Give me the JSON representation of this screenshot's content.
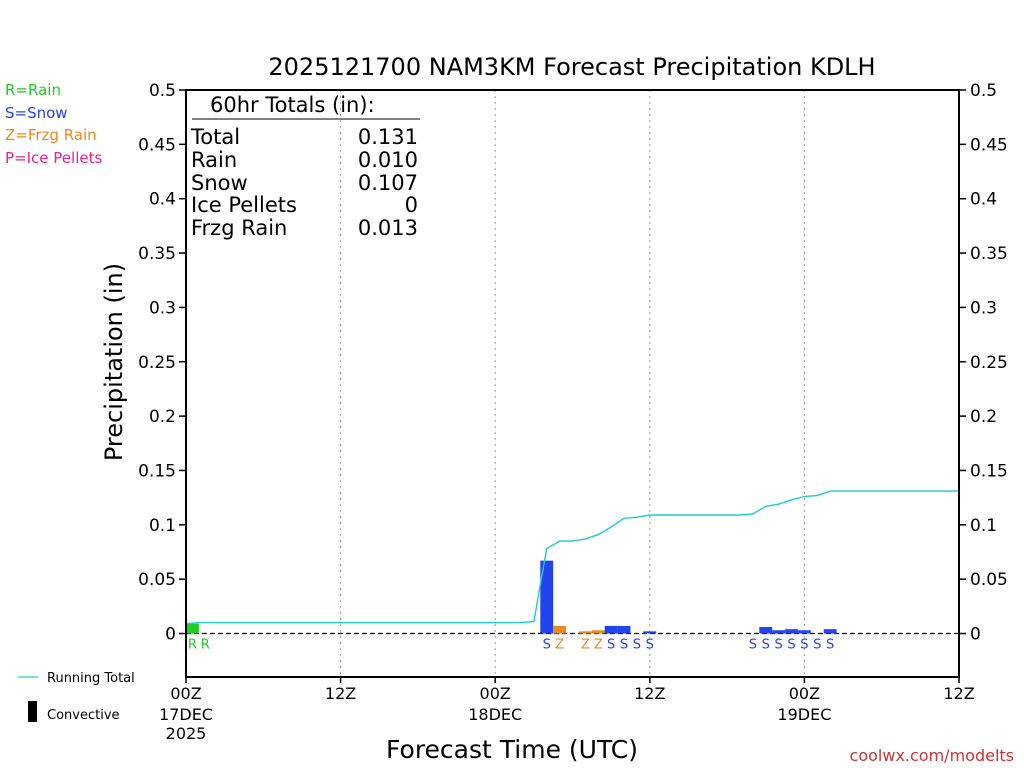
{
  "chart_data": {
    "type": "bar",
    "title": "2025121700 NAM3KM Forecast Precipitation KDLH",
    "xlabel": "Forecast Time (UTC)",
    "ylabel": "Precipitation (in)",
    "ylim": [
      -0.04,
      0.5
    ],
    "xlim_hours": [
      0,
      60
    ],
    "y_ticks": [
      0,
      0.05,
      0.1,
      0.15,
      0.2,
      0.25,
      0.3,
      0.35,
      0.4,
      0.45,
      0.5
    ],
    "y_tick_labels": [
      "0",
      "0.05",
      "0.1",
      "0.15",
      "0.2",
      "0.25",
      "0.3",
      "0.35",
      "0.4",
      "0.45",
      "0.5"
    ],
    "x_ticks": [
      {
        "hour": 0,
        "label": "00Z",
        "date": "17DEC",
        "year": "2025"
      },
      {
        "hour": 12,
        "label": "12Z",
        "date": "",
        "year": ""
      },
      {
        "hour": 24,
        "label": "00Z",
        "date": "18DEC",
        "year": ""
      },
      {
        "hour": 36,
        "label": "12Z",
        "date": "",
        "year": ""
      },
      {
        "hour": 48,
        "label": "00Z",
        "date": "19DEC",
        "year": ""
      },
      {
        "hour": 60,
        "label": "12Z",
        "date": "",
        "year": ""
      }
    ],
    "bars": [
      {
        "start": 0,
        "end": 1,
        "value": 0.009,
        "type": "R"
      },
      {
        "start": 27.5,
        "end": 28.5,
        "value": 0.067,
        "type": "S"
      },
      {
        "start": 28.5,
        "end": 29.5,
        "value": 0.007,
        "type": "Z"
      },
      {
        "start": 30.5,
        "end": 31.5,
        "value": 0.002,
        "type": "Z"
      },
      {
        "start": 31.5,
        "end": 32.5,
        "value": 0.003,
        "type": "Z"
      },
      {
        "start": 32.5,
        "end": 33.5,
        "value": 0.007,
        "type": "S"
      },
      {
        "start": 33.5,
        "end": 34.5,
        "value": 0.007,
        "type": "S"
      },
      {
        "start": 35.5,
        "end": 36.5,
        "value": 0.002,
        "type": "S"
      },
      {
        "start": 44.5,
        "end": 45.5,
        "value": 0.006,
        "type": "S"
      },
      {
        "start": 45.5,
        "end": 46.5,
        "value": 0.003,
        "type": "S"
      },
      {
        "start": 46.5,
        "end": 47.5,
        "value": 0.004,
        "type": "S"
      },
      {
        "start": 47.5,
        "end": 48.5,
        "value": 0.003,
        "type": "S"
      },
      {
        "start": 49.5,
        "end": 50.5,
        "value": 0.004,
        "type": "S"
      }
    ],
    "type_marks": [
      {
        "hour": 0.5,
        "type": "R",
        "text": "R"
      },
      {
        "hour": 1.5,
        "type": "R",
        "text": "R"
      },
      {
        "hour": 28,
        "type": "S",
        "text": "S"
      },
      {
        "hour": 29,
        "type": "Z",
        "text": "Z"
      },
      {
        "hour": 31,
        "type": "Z",
        "text": "Z"
      },
      {
        "hour": 32,
        "type": "Z",
        "text": "Z"
      },
      {
        "hour": 33,
        "type": "S",
        "text": "S"
      },
      {
        "hour": 34,
        "type": "S",
        "text": "S"
      },
      {
        "hour": 35,
        "type": "S",
        "text": "S"
      },
      {
        "hour": 36,
        "type": "S",
        "text": "S"
      },
      {
        "hour": 44,
        "type": "S",
        "text": "S"
      },
      {
        "hour": 45,
        "type": "S",
        "text": "S"
      },
      {
        "hour": 46,
        "type": "S",
        "text": "S"
      },
      {
        "hour": 47,
        "type": "S",
        "text": "S"
      },
      {
        "hour": 48,
        "type": "S",
        "text": "S"
      },
      {
        "hour": 49,
        "type": "S",
        "text": "S"
      },
      {
        "hour": 50,
        "type": "S",
        "text": "S"
      }
    ],
    "running_total": {
      "name": "Running Total",
      "x": [
        0,
        1,
        2,
        26,
        27,
        27.5,
        28,
        29,
        30,
        31,
        32,
        33,
        34,
        35,
        36,
        37,
        38,
        39,
        40,
        41,
        42,
        43,
        44,
        45,
        46,
        47,
        48,
        49,
        50,
        51,
        52,
        53,
        54,
        55,
        56,
        57,
        58,
        59,
        60
      ],
      "y": [
        0.009,
        0.01,
        0.01,
        0.01,
        0.011,
        0.045,
        0.078,
        0.085,
        0.085,
        0.087,
        0.091,
        0.098,
        0.106,
        0.107,
        0.109,
        0.109,
        0.109,
        0.109,
        0.109,
        0.109,
        0.109,
        0.109,
        0.11,
        0.117,
        0.119,
        0.123,
        0.126,
        0.127,
        0.131,
        0.131,
        0.131,
        0.131,
        0.131,
        0.131,
        0.131,
        0.131,
        0.131,
        0.131,
        0.131
      ]
    },
    "totals_box": {
      "heading": "60hr Totals (in):",
      "rows": [
        {
          "label": "Total",
          "value": "0.131"
        },
        {
          "label": "Rain",
          "value": "0.010"
        },
        {
          "label": "Snow",
          "value": "0.107"
        },
        {
          "label": "Ice Pellets",
          "value": "0"
        },
        {
          "label": "Frzg Rain",
          "value": "0.013"
        }
      ]
    },
    "type_legend": [
      {
        "key": "R",
        "text": "R=Rain"
      },
      {
        "key": "S",
        "text": "S=Snow"
      },
      {
        "key": "Z",
        "text": "Z=Frzg Rain"
      },
      {
        "key": "P",
        "text": "P=Ice Pellets"
      }
    ],
    "line_legend": {
      "running_total": "Running Total",
      "convective": "Convective"
    },
    "grid": "dotted vertical at 00Z/12Z",
    "credit": "coolwx.com/modelts",
    "colors": {
      "R": "#22cc22",
      "S": "#2244ee",
      "Z": "#ee8822",
      "P": "#ee2288",
      "running_total": "#22cccc",
      "convective": "#000000",
      "credit": "#cc3333"
    }
  }
}
